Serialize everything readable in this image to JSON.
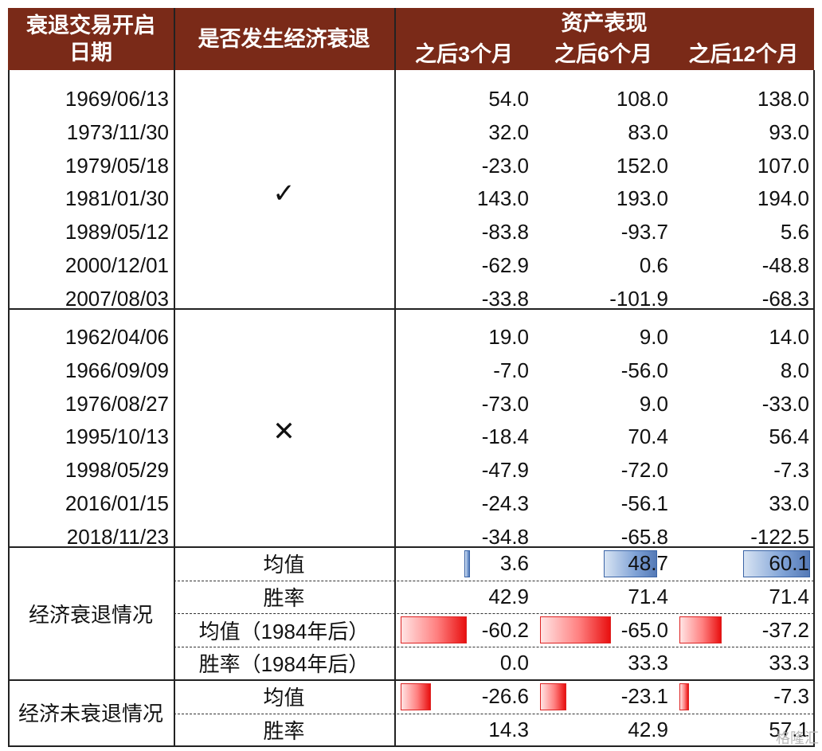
{
  "header": {
    "col_date": "衰退交易开启日期",
    "col_recession": "是否发生经济衰退",
    "group": "资产表现",
    "col_3m": "之后3个月",
    "col_6m": "之后6个月",
    "col_12m": "之后12个月"
  },
  "group_yes": {
    "symbol": "✓",
    "rows": [
      {
        "date": "1969/06/13",
        "m3": "54.0",
        "m6": "108.0",
        "m12": "138.0"
      },
      {
        "date": "1973/11/30",
        "m3": "32.0",
        "m6": "83.0",
        "m12": "93.0"
      },
      {
        "date": "1979/05/18",
        "m3": "-23.0",
        "m6": "152.0",
        "m12": "107.0"
      },
      {
        "date": "1981/01/30",
        "m3": "143.0",
        "m6": "193.0",
        "m12": "194.0"
      },
      {
        "date": "1989/05/12",
        "m3": "-83.8",
        "m6": "-93.7",
        "m12": "5.6"
      },
      {
        "date": "2000/12/01",
        "m3": "-62.9",
        "m6": "0.6",
        "m12": "-48.8"
      },
      {
        "date": "2007/08/03",
        "m3": "-33.8",
        "m6": "-101.9",
        "m12": "-68.3"
      }
    ]
  },
  "group_no": {
    "symbol": "✕",
    "rows": [
      {
        "date": "1962/04/06",
        "m3": "19.0",
        "m6": "9.0",
        "m12": "14.0"
      },
      {
        "date": "1966/09/09",
        "m3": "-7.0",
        "m6": "-56.0",
        "m12": "8.0"
      },
      {
        "date": "1976/08/27",
        "m3": "-73.0",
        "m6": "9.0",
        "m12": "-33.0"
      },
      {
        "date": "1995/10/13",
        "m3": "-18.4",
        "m6": "70.4",
        "m12": "56.4"
      },
      {
        "date": "1998/05/29",
        "m3": "-47.9",
        "m6": "-72.0",
        "m12": "-7.3"
      },
      {
        "date": "2016/01/15",
        "m3": "-24.3",
        "m6": "-56.1",
        "m12": "33.0"
      },
      {
        "date": "2018/11/23",
        "m3": "-34.8",
        "m6": "-65.8",
        "m12": "-122.5"
      }
    ]
  },
  "summary_recession": {
    "label": "经济衰退情况",
    "rows": [
      {
        "metric": "均值",
        "m3": "3.6",
        "m6": "48.7",
        "m12": "60.1"
      },
      {
        "metric": "胜率",
        "m3": "42.9",
        "m6": "71.4",
        "m12": "71.4"
      },
      {
        "metric": "均值（1984年后）",
        "m3": "-60.2",
        "m6": "-65.0",
        "m12": "-37.2"
      },
      {
        "metric": "胜率（1984年后）",
        "m3": "0.0",
        "m6": "33.3",
        "m12": "33.3"
      }
    ]
  },
  "summary_no_recession": {
    "label": "经济未衰退情况",
    "rows": [
      {
        "metric": "均值",
        "m3": "-26.6",
        "m6": "-23.1",
        "m12": "-7.3"
      },
      {
        "metric": "胜率",
        "m3": "14.3",
        "m6": "42.9",
        "m12": "57.1"
      }
    ]
  },
  "data_bars": {
    "colors": {
      "positive": "#5479b6",
      "negative": "#e81010"
    },
    "items": [
      {
        "row": "recession_mean",
        "col": "m3",
        "value": 3.6,
        "sign": "positive"
      },
      {
        "row": "recession_mean",
        "col": "m6",
        "value": 48.7,
        "sign": "positive"
      },
      {
        "row": "recession_mean",
        "col": "m12",
        "value": 60.1,
        "sign": "positive"
      },
      {
        "row": "recession_mean_post1984",
        "col": "m3",
        "value": -60.2,
        "sign": "negative"
      },
      {
        "row": "recession_mean_post1984",
        "col": "m6",
        "value": -65.0,
        "sign": "negative"
      },
      {
        "row": "recession_mean_post1984",
        "col": "m12",
        "value": -37.2,
        "sign": "negative"
      },
      {
        "row": "no_recession_mean",
        "col": "m3",
        "value": -26.6,
        "sign": "negative"
      },
      {
        "row": "no_recession_mean",
        "col": "m6",
        "value": -23.1,
        "sign": "negative"
      },
      {
        "row": "no_recession_mean",
        "col": "m12",
        "value": -7.3,
        "sign": "negative"
      }
    ]
  },
  "watermark": "格隆汇",
  "colors": {
    "header_bg": "#7a2a18",
    "header_text": "#ffffff"
  }
}
